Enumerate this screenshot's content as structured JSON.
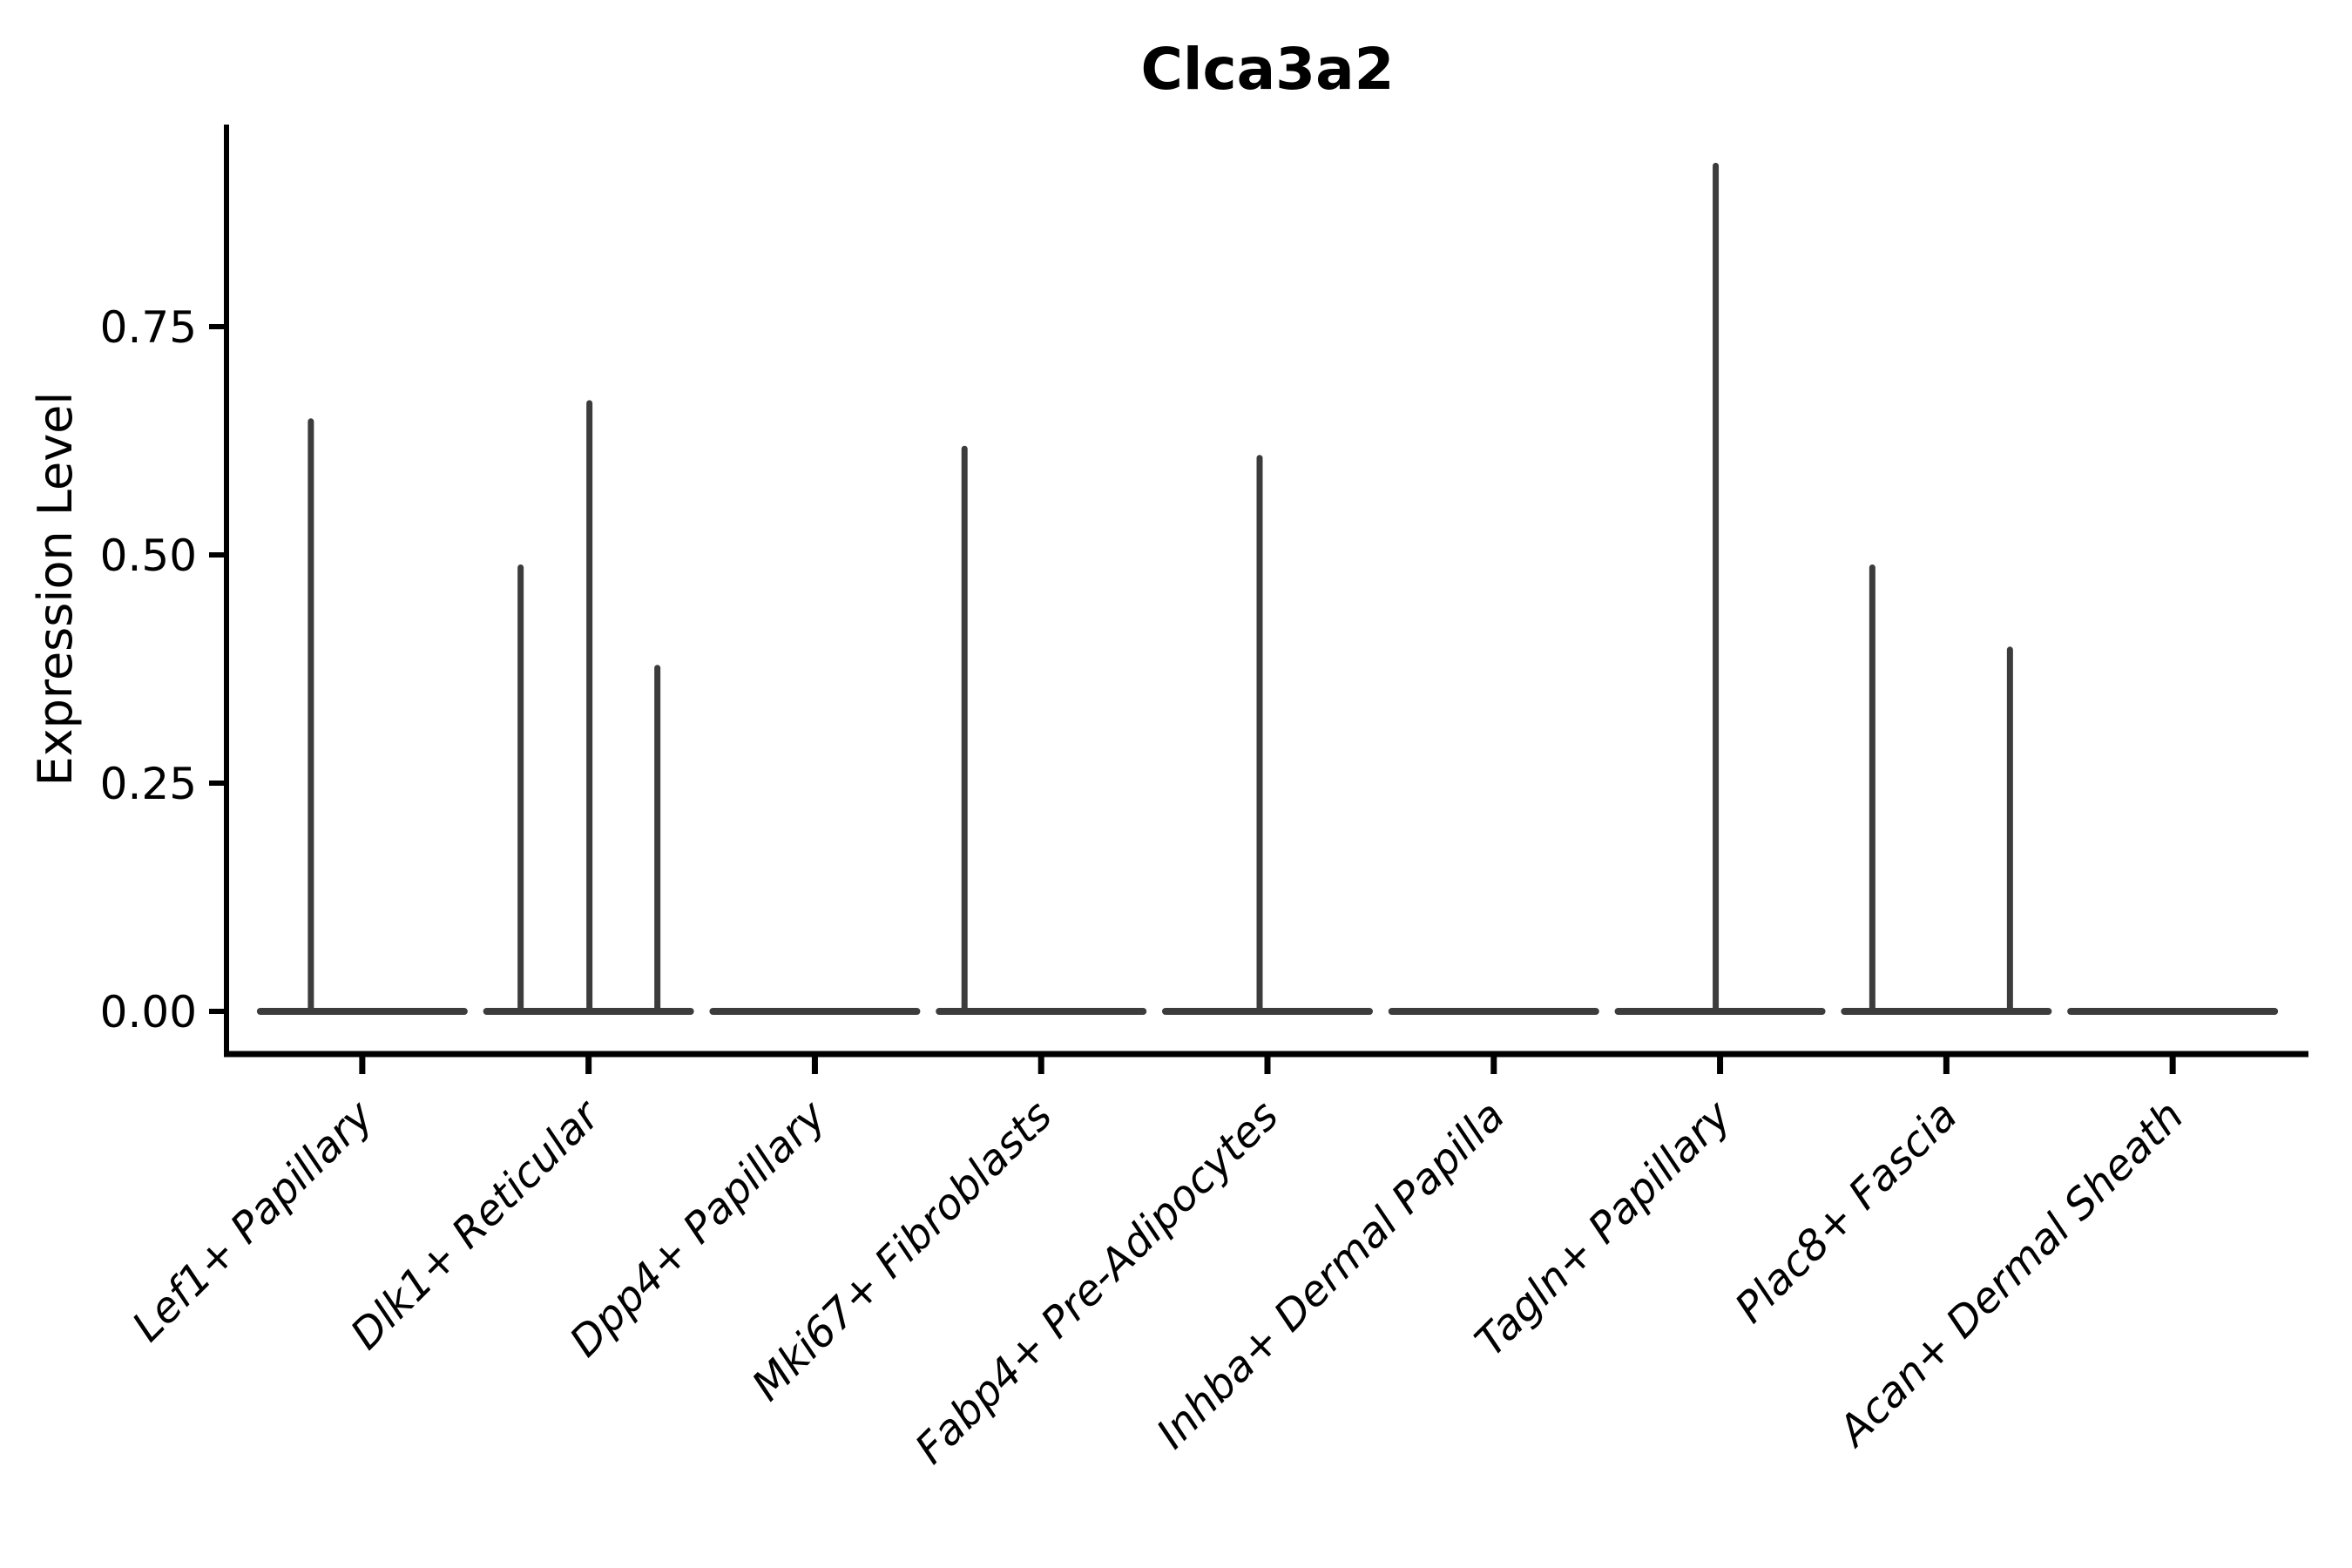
{
  "chart_data": {
    "type": "violin",
    "title": "Clca3a2",
    "ylabel": "Expression Level",
    "xlabel": "",
    "grid": false,
    "legend": "none",
    "ylim": [
      0,
      0.97
    ],
    "yticks": {
      "values": [
        0.0,
        0.25,
        0.5,
        0.75
      ],
      "labels": [
        "0.00",
        "0.25",
        "0.50",
        "0.75"
      ]
    },
    "categories": [
      "Lef1+ Papillary",
      "Dlk1+ Reticular",
      "Dpp4+ Papillary",
      "Mki67+ Fibroblasts",
      "Fabp4+ Pre-Adipocytes",
      "Inhba+ Dermal Papilla",
      "Tagln+ Papillary",
      "Plac8+ Fascia",
      "Acan+ Dermal Sheath"
    ],
    "series": [
      {
        "name": "Lef1+ Papillary",
        "baseline_value": 0.0,
        "spikes": [
          {
            "dx": -59,
            "value": 0.65
          }
        ]
      },
      {
        "name": "Dlk1+ Reticular",
        "baseline_value": 0.0,
        "spikes": [
          {
            "dx": -78,
            "value": 0.49
          },
          {
            "dx": 1,
            "value": 0.67
          },
          {
            "dx": 79,
            "value": 0.38
          }
        ]
      },
      {
        "name": "Dpp4+ Papillary",
        "baseline_value": 0.0,
        "spikes": []
      },
      {
        "name": "Mki67+ Fibroblasts",
        "baseline_value": 0.0,
        "spikes": [
          {
            "dx": -88,
            "value": 0.62
          }
        ]
      },
      {
        "name": "Fabp4+ Pre-Adipocytes",
        "baseline_value": 0.0,
        "spikes": [
          {
            "dx": -9,
            "value": 0.61
          }
        ]
      },
      {
        "name": "Inhba+ Dermal Papilla",
        "baseline_value": 0.0,
        "spikes": []
      },
      {
        "name": "Tagln+ Papillary",
        "baseline_value": 0.0,
        "spikes": [
          {
            "dx": -5,
            "value": 0.93
          }
        ]
      },
      {
        "name": "Plac8+ Fascia",
        "baseline_value": 0.0,
        "spikes": [
          {
            "dx": -85,
            "value": 0.49
          },
          {
            "dx": 73,
            "value": 0.4
          }
        ]
      },
      {
        "name": "Acan+ Dermal Sheath",
        "baseline_value": 0.0,
        "spikes": []
      }
    ],
    "colors": {
      "ink": "#000000",
      "violin": "#3c3c3c",
      "background": "#ffffff"
    }
  }
}
